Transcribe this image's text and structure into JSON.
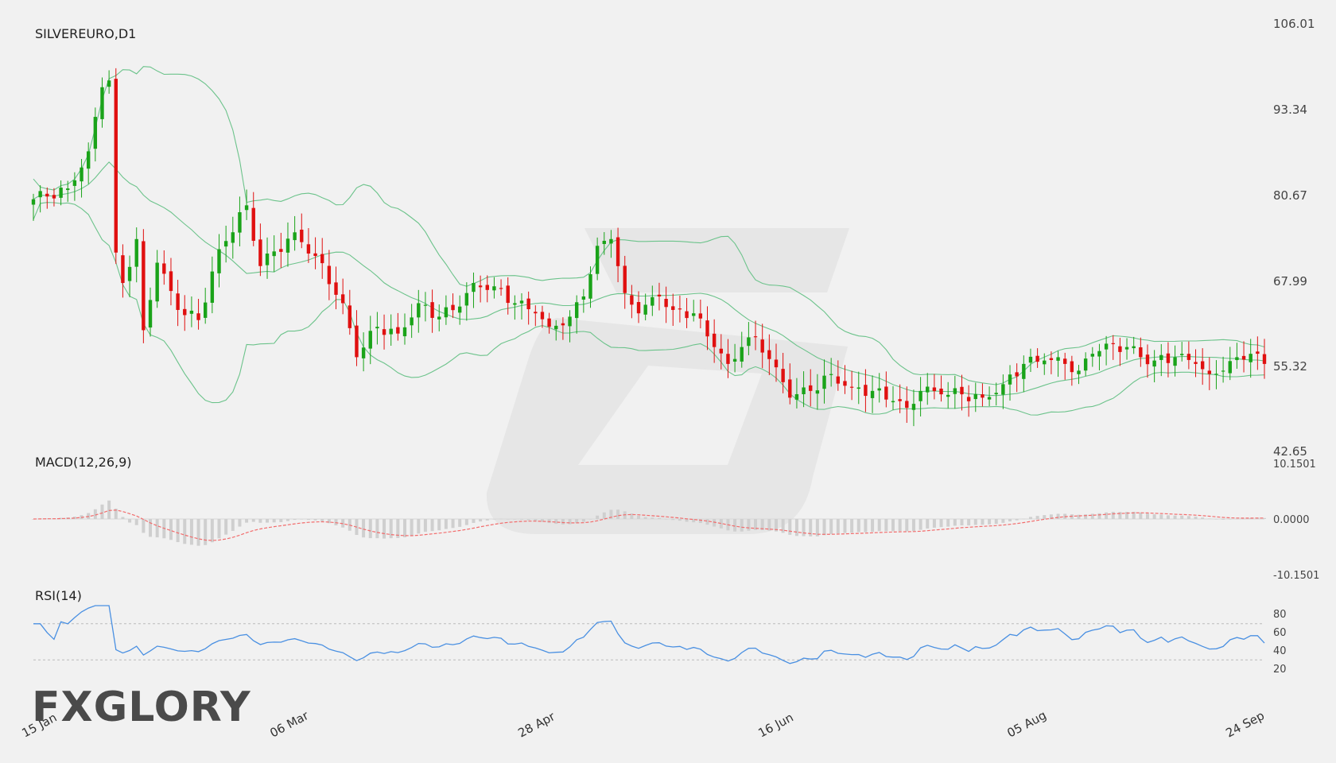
{
  "brand": {
    "logo_text": "FXGLORY"
  },
  "colors": {
    "background": "#f1f1f1",
    "bull": "#1aa319",
    "bear": "#e01010",
    "bollinger": "#6cc38b",
    "macd_signal": "#f26c6c",
    "macd_hist": "#cfcfcf",
    "rsi_line": "#4a90e2",
    "rsi_levels": "#bbbbbb",
    "axis_text": "#444444",
    "watermark": "#e0e0e0",
    "logo_accent": "#e8792f"
  },
  "chart_data": [
    {
      "type": "candlestick",
      "title": "SILVEREURO,D1",
      "timeframe": "D1",
      "y_ticks": [
        "106.01",
        "93.34",
        "80.67",
        "67.99",
        "55.32",
        "42.65"
      ],
      "ylim": [
        42.65,
        106.01
      ],
      "x_ticks": [
        "15 Jan",
        "06 Mar",
        "28 Apr",
        "16 Jun",
        "05 Aug",
        "24 Sep"
      ],
      "close_anchors": [
        {
          "i": 0,
          "v": 79.9
        },
        {
          "i": 5,
          "v": 81.5
        },
        {
          "i": 8,
          "v": 87.0
        },
        {
          "i": 10,
          "v": 96.5
        },
        {
          "i": 11,
          "v": 97.5
        },
        {
          "i": 12,
          "v": 72.0
        },
        {
          "i": 13,
          "v": 67.5
        },
        {
          "i": 15,
          "v": 74.0
        },
        {
          "i": 16,
          "v": 60.5
        },
        {
          "i": 18,
          "v": 70.5
        },
        {
          "i": 21,
          "v": 63.5
        },
        {
          "i": 24,
          "v": 62.0
        },
        {
          "i": 27,
          "v": 72.5
        },
        {
          "i": 31,
          "v": 79.0
        },
        {
          "i": 33,
          "v": 70.0
        },
        {
          "i": 38,
          "v": 75.0
        },
        {
          "i": 41,
          "v": 71.5
        },
        {
          "i": 45,
          "v": 64.5
        },
        {
          "i": 47,
          "v": 56.5
        },
        {
          "i": 50,
          "v": 61.0
        },
        {
          "i": 53,
          "v": 60.0
        },
        {
          "i": 56,
          "v": 64.5
        },
        {
          "i": 59,
          "v": 62.5
        },
        {
          "i": 62,
          "v": 64.0
        },
        {
          "i": 64,
          "v": 67.5
        },
        {
          "i": 67,
          "v": 67.0
        },
        {
          "i": 70,
          "v": 64.5
        },
        {
          "i": 73,
          "v": 63.0
        },
        {
          "i": 75,
          "v": 61.0
        },
        {
          "i": 78,
          "v": 62.5
        },
        {
          "i": 80,
          "v": 65.5
        },
        {
          "i": 82,
          "v": 73.0
        },
        {
          "i": 84,
          "v": 74.0
        },
        {
          "i": 86,
          "v": 66.0
        },
        {
          "i": 88,
          "v": 63.0
        },
        {
          "i": 91,
          "v": 65.5
        },
        {
          "i": 93,
          "v": 63.5
        },
        {
          "i": 96,
          "v": 63.0
        },
        {
          "i": 99,
          "v": 58.0
        },
        {
          "i": 101,
          "v": 55.5
        },
        {
          "i": 103,
          "v": 58.0
        },
        {
          "i": 105,
          "v": 59.5
        },
        {
          "i": 108,
          "v": 55.0
        },
        {
          "i": 110,
          "v": 50.5
        },
        {
          "i": 113,
          "v": 51.5
        },
        {
          "i": 116,
          "v": 54.0
        },
        {
          "i": 119,
          "v": 52.0
        },
        {
          "i": 122,
          "v": 51.5
        },
        {
          "i": 125,
          "v": 50.0
        },
        {
          "i": 127,
          "v": 49.0
        },
        {
          "i": 129,
          "v": 51.5
        },
        {
          "i": 132,
          "v": 51.0
        },
        {
          "i": 135,
          "v": 51.0
        },
        {
          "i": 138,
          "v": 50.5
        },
        {
          "i": 141,
          "v": 52.5
        },
        {
          "i": 144,
          "v": 55.5
        },
        {
          "i": 147,
          "v": 56.0
        },
        {
          "i": 150,
          "v": 55.5
        },
        {
          "i": 152,
          "v": 54.5
        },
        {
          "i": 154,
          "v": 57.0
        },
        {
          "i": 156,
          "v": 58.5
        },
        {
          "i": 159,
          "v": 58.0
        },
        {
          "i": 161,
          "v": 56.5
        },
        {
          "i": 163,
          "v": 56.0
        },
        {
          "i": 166,
          "v": 56.5
        },
        {
          "i": 169,
          "v": 55.5
        },
        {
          "i": 171,
          "v": 54.0
        },
        {
          "i": 173,
          "v": 54.5
        },
        {
          "i": 175,
          "v": 56.5
        },
        {
          "i": 177,
          "v": 57.0
        },
        {
          "i": 179,
          "v": 55.5
        }
      ],
      "bollinger": {
        "period": 20,
        "deviations": 2
      }
    },
    {
      "type": "line",
      "title": "MACD(12,26,9)",
      "y_ticks": [
        "10.1501",
        "0.0000",
        "-10.1501"
      ],
      "ylim": [
        -10.1501,
        10.1501
      ]
    },
    {
      "type": "line",
      "title": "RSI(14)",
      "y_ticks": [
        "80",
        "60",
        "40",
        "20"
      ],
      "ylim": [
        10,
        90
      ],
      "levels": [
        70,
        30
      ]
    }
  ]
}
